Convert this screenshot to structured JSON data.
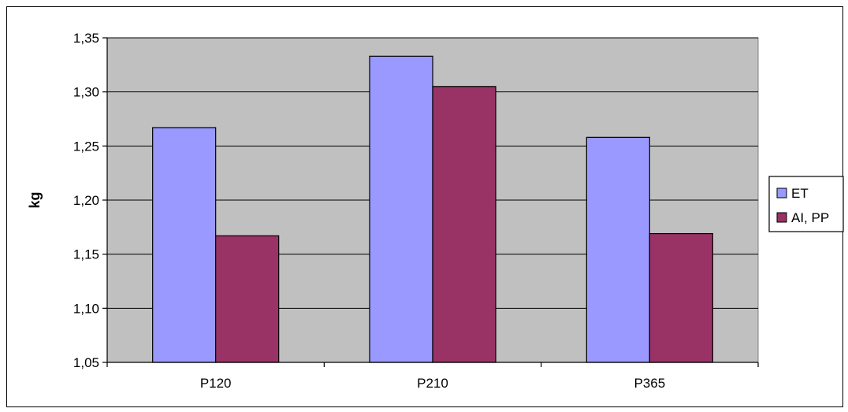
{
  "chart_data": {
    "type": "bar",
    "categories": [
      "P120",
      "P210",
      "P365"
    ],
    "series": [
      {
        "name": "ET",
        "color": "#9999ff",
        "values": [
          1.267,
          1.333,
          1.258
        ]
      },
      {
        "name": "AI, PP",
        "color": "#993366",
        "values": [
          1.167,
          1.305,
          1.169
        ]
      }
    ],
    "title": "",
    "xlabel": "",
    "ylabel": "kg",
    "ylim": [
      1.05,
      1.35
    ],
    "yticks": [
      1.05,
      1.1,
      1.15,
      1.2,
      1.25,
      1.3,
      1.35
    ],
    "ytick_labels": [
      "1,05",
      "1,10",
      "1,15",
      "1,20",
      "1,25",
      "1,30",
      "1,35"
    ],
    "plot_background": "#c0c0c0",
    "grid": true,
    "legend_position": "right"
  }
}
